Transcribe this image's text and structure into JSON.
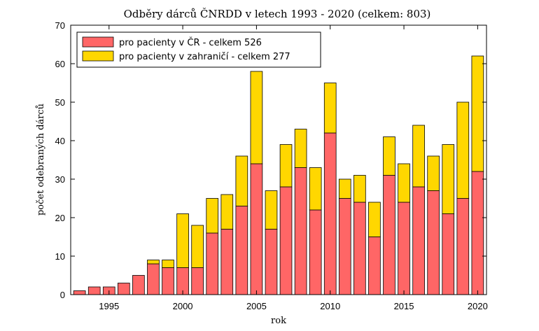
{
  "chart_data": {
    "type": "bar",
    "stacked": true,
    "title": "Odběry dárců ČNRDD v letech 1993 - 2020 (celkem: 803)",
    "xlabel": "rok",
    "ylabel": "počet odebraných dárců",
    "x": [
      1993,
      1994,
      1995,
      1996,
      1997,
      1998,
      1999,
      2000,
      2001,
      2002,
      2003,
      2004,
      2005,
      2006,
      2007,
      2008,
      2009,
      2010,
      2011,
      2012,
      2013,
      2014,
      2015,
      2016,
      2017,
      2018,
      2019,
      2020
    ],
    "xlim": [
      1992.4,
      2020.6
    ],
    "ylim": [
      0,
      70
    ],
    "xticks": [
      1995,
      2000,
      2005,
      2010,
      2015,
      2020
    ],
    "yticks": [
      0,
      10,
      20,
      30,
      40,
      50,
      60,
      70
    ],
    "grid": false,
    "legend_position": "top-left",
    "series": [
      {
        "name": "pro pacienty v ČR - celkem 526",
        "color": "#ff6666",
        "values": [
          1,
          2,
          2,
          3,
          5,
          8,
          7,
          7,
          7,
          16,
          17,
          23,
          34,
          17,
          28,
          33,
          22,
          42,
          25,
          24,
          15,
          31,
          24,
          28,
          27,
          21,
          25,
          32
        ]
      },
      {
        "name": "pro pacienty v zahraničí - celkem 277",
        "color": "#ffd700",
        "values": [
          0,
          0,
          0,
          0,
          0,
          1,
          2,
          14,
          11,
          9,
          9,
          13,
          24,
          10,
          11,
          10,
          11,
          13,
          5,
          7,
          9,
          10,
          10,
          16,
          9,
          18,
          25,
          30
        ]
      }
    ]
  }
}
